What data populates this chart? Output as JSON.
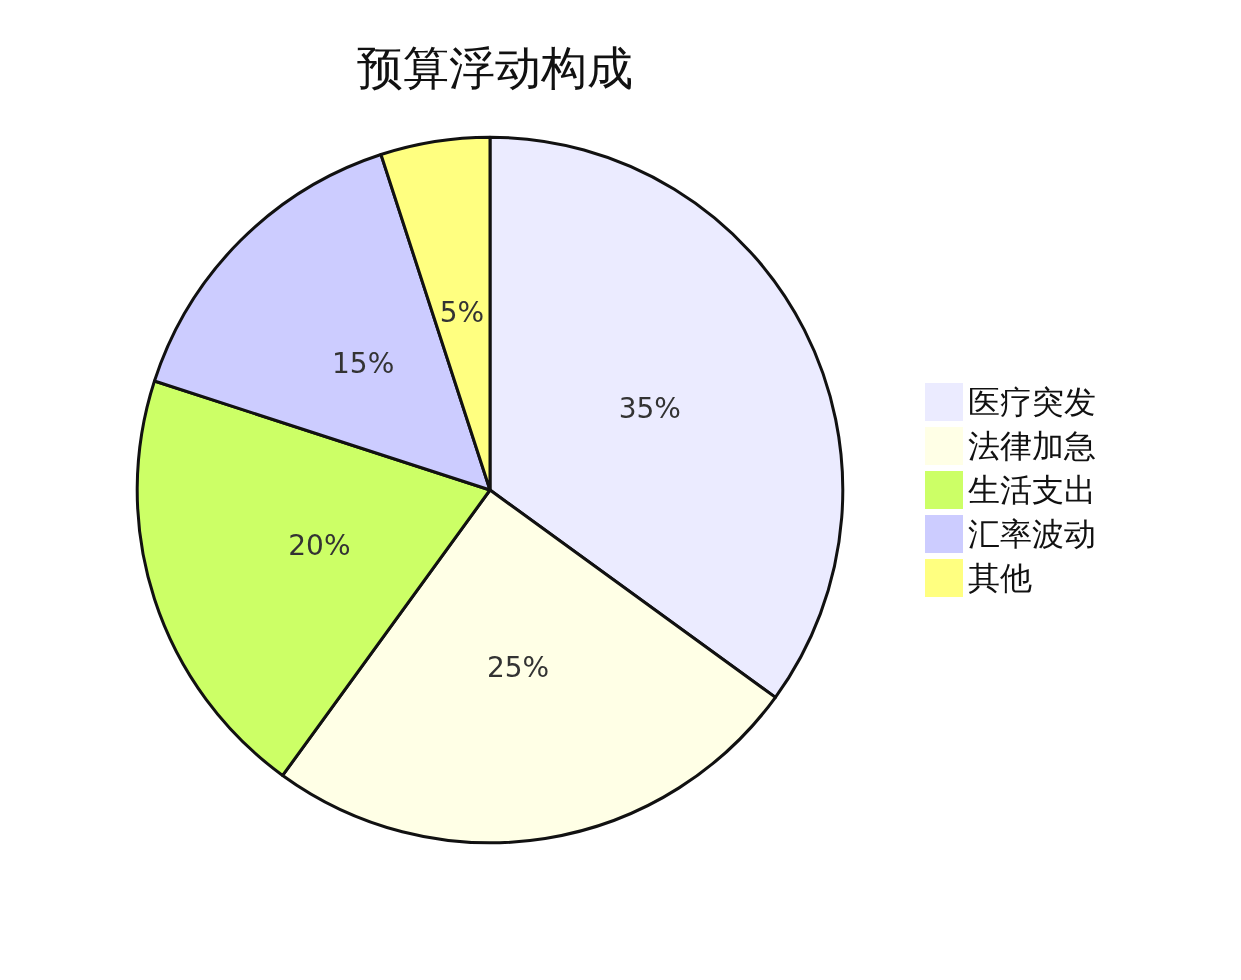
{
  "chart_data": {
    "type": "pie",
    "title": "预算浮动构成",
    "categories": [
      "医疗突发",
      "法律加急",
      "生活支出",
      "汇率波动",
      "其他"
    ],
    "values": [
      35,
      25,
      20,
      15,
      5
    ],
    "colors": [
      "#ebebff",
      "#ffffe6",
      "#ccff66",
      "#ccccff",
      "#ffff80"
    ],
    "value_labels": [
      "35%",
      "25%",
      "20%",
      "15%",
      "5%"
    ],
    "legend": "right"
  }
}
